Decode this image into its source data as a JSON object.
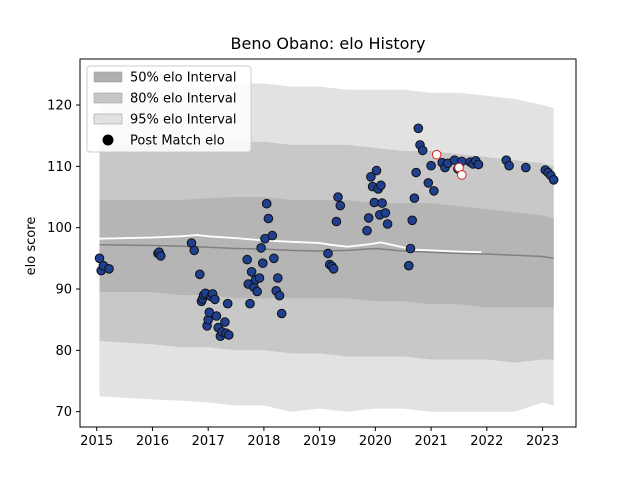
{
  "chart_data": {
    "type": "scatter",
    "title": "Beno Obano: elo History",
    "xlabel": "",
    "ylabel": "elo score",
    "xlim": [
      2014.7,
      2023.6
    ],
    "ylim": [
      67.5,
      127.5
    ],
    "xticks": [
      2015,
      2016,
      2017,
      2018,
      2019,
      2020,
      2021,
      2022,
      2023
    ],
    "yticks": [
      70,
      80,
      90,
      100,
      110,
      120
    ],
    "grid": false,
    "legend_placement": "top-left",
    "legend": [
      {
        "label": "50% elo Interval",
        "color": "#b0b0b0",
        "kind": "patch"
      },
      {
        "label": "80% elo Interval",
        "color": "#c6c6c6",
        "kind": "patch"
      },
      {
        "label": "95% elo Interval",
        "color": "#e2e2e2",
        "kind": "patch"
      },
      {
        "label": "Post Match elo",
        "color": "#000000",
        "kind": "marker"
      }
    ],
    "colors": {
      "band95": "#e2e2e2",
      "band80": "#c8c8c8",
      "band50": "#b5b5b5",
      "median_line": "#808080",
      "white_line": "#ffffff",
      "point_fill": "#1f3f8f",
      "point_edge": "#111111",
      "highlight_fill": "#ffffff",
      "highlight_edge": "#d62728"
    },
    "bands": {
      "x": [
        2015.05,
        2016.0,
        2016.5,
        2017.0,
        2017.5,
        2018.0,
        2018.5,
        2019.0,
        2019.5,
        2020.0,
        2020.5,
        2021.0,
        2021.5,
        2022.0,
        2022.5,
        2023.0,
        2023.2
      ],
      "p95": [
        [
          72.5,
          122.0
        ],
        [
          72.0,
          122.5
        ],
        [
          71.8,
          122.5
        ],
        [
          71.5,
          123.0
        ],
        [
          71.0,
          123.5
        ],
        [
          71.0,
          123.5
        ],
        [
          70.0,
          123.0
        ],
        [
          70.5,
          123.0
        ],
        [
          70.0,
          122.5
        ],
        [
          70.5,
          122.5
        ],
        [
          70.5,
          122.5
        ],
        [
          70.0,
          122.0
        ],
        [
          70.0,
          122.0
        ],
        [
          70.0,
          121.5
        ],
        [
          70.0,
          121.0
        ],
        [
          71.5,
          120.0
        ],
        [
          71.0,
          119.5
        ]
      ],
      "p80": [
        [
          81.5,
          113.5
        ],
        [
          81.0,
          113.5
        ],
        [
          80.5,
          113.8
        ],
        [
          80.5,
          114.0
        ],
        [
          80.0,
          114.0
        ],
        [
          80.0,
          114.0
        ],
        [
          79.5,
          113.5
        ],
        [
          79.5,
          113.5
        ],
        [
          79.0,
          113.5
        ],
        [
          79.0,
          113.0
        ],
        [
          79.0,
          112.5
        ],
        [
          78.5,
          112.5
        ],
        [
          78.5,
          112.0
        ],
        [
          78.5,
          111.5
        ],
        [
          78.0,
          111.0
        ],
        [
          78.5,
          110.5
        ],
        [
          78.5,
          110.0
        ]
      ],
      "p50": [
        [
          89.5,
          104.5
        ],
        [
          89.5,
          104.5
        ],
        [
          89.0,
          104.5
        ],
        [
          89.0,
          104.8
        ],
        [
          88.5,
          105.0
        ],
        [
          88.5,
          105.0
        ],
        [
          88.5,
          104.5
        ],
        [
          88.5,
          104.5
        ],
        [
          88.5,
          104.5
        ],
        [
          88.0,
          104.0
        ],
        [
          88.0,
          104.0
        ],
        [
          87.5,
          104.0
        ],
        [
          87.5,
          103.5
        ],
        [
          87.0,
          103.0
        ],
        [
          87.0,
          102.5
        ],
        [
          87.0,
          102.0
        ],
        [
          87.0,
          101.5
        ]
      ]
    },
    "median_line": {
      "x": [
        2015.05,
        2016.0,
        2016.5,
        2017.0,
        2017.5,
        2018.0,
        2018.5,
        2019.0,
        2019.5,
        2020.0,
        2020.5,
        2021.0,
        2021.5,
        2022.0,
        2022.5,
        2023.0,
        2023.2
      ],
      "y": [
        97.2,
        97.1,
        97.0,
        96.8,
        96.6,
        96.5,
        96.3,
        96.2,
        96.3,
        96.6,
        96.2,
        96.0,
        95.8,
        95.7,
        95.5,
        95.3,
        95.0
      ]
    },
    "white_line": {
      "x": [
        2015.05,
        2016.0,
        2016.5,
        2016.8,
        2017.0,
        2017.5,
        2018.0,
        2018.5,
        2019.0,
        2019.2,
        2019.5,
        2019.9,
        2020.1,
        2020.4,
        2020.7,
        2021.0,
        2021.5,
        2021.9
      ],
      "y": [
        98.2,
        98.4,
        98.6,
        98.8,
        98.6,
        98.3,
        97.9,
        97.7,
        97.5,
        97.2,
        96.9,
        97.3,
        97.6,
        97.0,
        96.4,
        96.3,
        96.1,
        96.0
      ]
    },
    "points": {
      "x": [
        2015.05,
        2015.08,
        2015.12,
        2015.22,
        2016.1,
        2016.12,
        2016.15,
        2016.7,
        2016.75,
        2016.85,
        2016.88,
        2016.9,
        2016.92,
        2016.95,
        2016.98,
        2017.0,
        2017.02,
        2017.05,
        2017.08,
        2017.12,
        2017.15,
        2017.18,
        2017.22,
        2017.25,
        2017.3,
        2017.32,
        2017.35,
        2017.37,
        2017.7,
        2017.72,
        2017.75,
        2017.78,
        2017.82,
        2017.85,
        2017.88,
        2017.92,
        2017.95,
        2017.98,
        2018.02,
        2018.05,
        2018.08,
        2018.15,
        2018.18,
        2018.22,
        2018.25,
        2018.28,
        2018.32,
        2019.15,
        2019.18,
        2019.22,
        2019.25,
        2019.3,
        2019.33,
        2019.37,
        2019.85,
        2019.88,
        2019.92,
        2019.95,
        2019.98,
        2020.02,
        2020.05,
        2020.08,
        2020.1,
        2020.12,
        2020.18,
        2020.22,
        2020.6,
        2020.63,
        2020.66,
        2020.7,
        2020.73,
        2020.77,
        2020.8,
        2020.85,
        2020.95,
        2021.0,
        2021.05,
        2021.2,
        2021.25,
        2021.3,
        2021.42,
        2021.48,
        2021.55,
        2021.7,
        2021.75,
        2021.8,
        2021.85,
        2022.35,
        2022.4,
        2022.7,
        2023.05,
        2023.1,
        2023.15,
        2023.2
      ],
      "y": [
        95.0,
        93.0,
        93.8,
        93.3,
        95.8,
        96.0,
        95.4,
        97.5,
        96.3,
        92.4,
        88.0,
        88.4,
        89.0,
        89.3,
        84.0,
        85.0,
        86.2,
        88.8,
        89.2,
        88.3,
        85.6,
        83.7,
        82.3,
        83.0,
        84.6,
        82.8,
        87.6,
        82.5,
        94.8,
        90.8,
        87.6,
        92.8,
        90.3,
        91.5,
        89.6,
        91.8,
        96.7,
        94.2,
        98.2,
        103.9,
        101.5,
        98.7,
        95.0,
        89.7,
        91.8,
        88.9,
        86.0,
        95.8,
        94.0,
        93.7,
        93.3,
        101.0,
        105.0,
        103.6,
        99.5,
        101.6,
        108.3,
        106.7,
        104.1,
        109.3,
        106.3,
        102.1,
        106.9,
        104.0,
        102.4,
        100.6,
        93.8,
        96.6,
        101.2,
        104.8,
        109.0,
        116.2,
        113.5,
        112.6,
        107.3,
        110.1,
        106.0,
        110.6,
        109.8,
        110.5,
        111.0,
        109.6,
        110.8,
        110.7,
        110.4,
        110.9,
        110.3,
        111.0,
        110.1,
        109.8,
        109.4,
        109.0,
        108.5,
        107.8
      ],
      "highlight_x": [
        2021.1,
        2021.5,
        2021.55
      ],
      "highlight_y": [
        111.9,
        109.8,
        108.6
      ]
    }
  }
}
